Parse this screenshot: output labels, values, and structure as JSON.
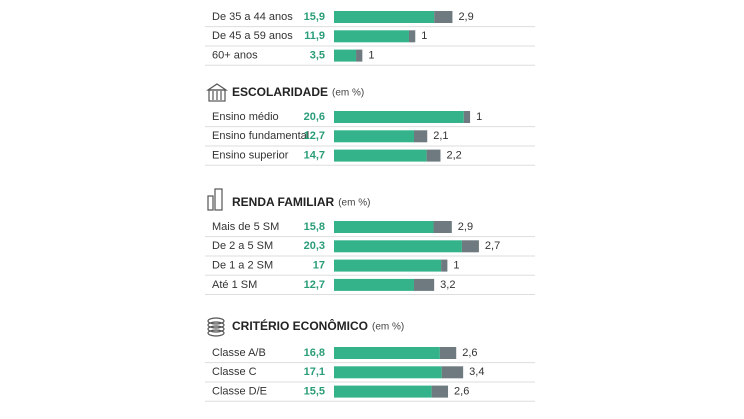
{
  "chart_data": [
    {
      "type": "bar",
      "categories": [
        "De 35 a 44 anos",
        "De 45 a 59 anos",
        "60+ anos"
      ],
      "series": [
        {
          "color": "#34b38a",
          "values": [
            15.9,
            11.9,
            3.5
          ],
          "value_labels": [
            "15,9",
            "11,9",
            "3,5"
          ]
        },
        {
          "color": "#6e7a80",
          "values": [
            2.9,
            1,
            1
          ],
          "value_labels": [
            "2,9",
            "1",
            "1"
          ]
        }
      ]
    },
    {
      "type": "bar",
      "title": "ESCOLARIDADE",
      "subtitle": "(em %)",
      "categories": [
        "Ensino médio",
        "Ensino fundamental",
        "Ensino superior"
      ],
      "series": [
        {
          "color": "#34b38a",
          "values": [
            20.6,
            12.7,
            14.7
          ],
          "value_labels": [
            "20,6",
            "12,7",
            "14,7"
          ]
        },
        {
          "color": "#6e7a80",
          "values": [
            1,
            2.1,
            2.2
          ],
          "value_labels": [
            "1",
            "2,1",
            "2,2"
          ]
        }
      ]
    },
    {
      "type": "bar",
      "title": "RENDA FAMILIAR",
      "subtitle": "(em %)",
      "categories": [
        "Mais de 5 SM",
        "De 2 a 5 SM",
        "De 1 a 2 SM",
        "Até 1 SM"
      ],
      "series": [
        {
          "color": "#34b38a",
          "values": [
            15.8,
            20.3,
            17,
            12.7
          ],
          "value_labels": [
            "15,8",
            "20,3",
            "17",
            "12,7"
          ]
        },
        {
          "color": "#6e7a80",
          "values": [
            2.9,
            2.7,
            1,
            3.2
          ],
          "value_labels": [
            "2,9",
            "2,7",
            "1",
            "3,2"
          ]
        }
      ]
    },
    {
      "type": "bar",
      "title": "CRITÉRIO ECONÔMICO",
      "subtitle": "(em %)",
      "categories": [
        "Classe A/B",
        "Classe C",
        "Classe D/E"
      ],
      "series": [
        {
          "color": "#34b38a",
          "values": [
            16.8,
            17.1,
            15.5
          ],
          "value_labels": [
            "16,8",
            "17,1",
            "15,5"
          ]
        },
        {
          "color": "#6e7a80",
          "values": [
            2.6,
            3.4,
            2.6
          ],
          "value_labels": [
            "2,6",
            "3,4",
            "2,6"
          ]
        }
      ]
    }
  ]
}
